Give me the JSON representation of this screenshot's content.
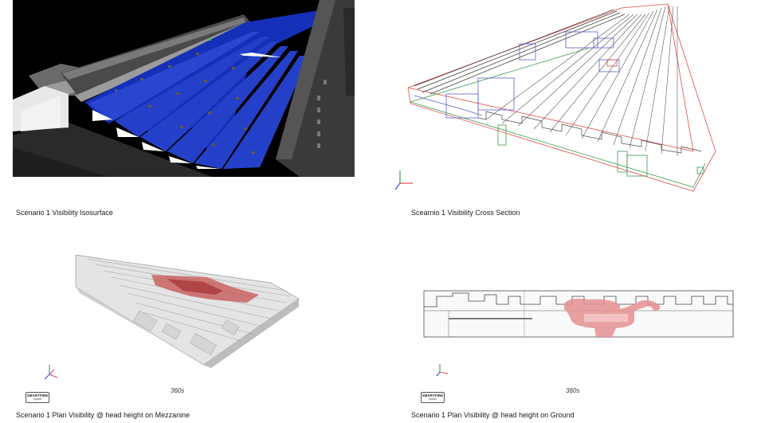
{
  "panels": [
    {
      "caption": "Scenario 1 Visibility Isosurface"
    },
    {
      "caption": "Scearnio 1 Visibility Cross Section"
    },
    {
      "caption": "Scenario 1 Plan Visibility @ head height on Mezzanine",
      "time": "360s",
      "logo_line1": "SMARTFIRE",
      "logo_line2": "System"
    },
    {
      "caption": "Scenario 1 Plan Visibility @ head height on Ground",
      "time": "360s",
      "logo_line1": "SMARTFIRE",
      "logo_line2": "System"
    }
  ],
  "colors": {
    "isosurface_blue": "#1530b8",
    "roof_grey": "#3a3a3a",
    "visibility_red": "#e58f8f",
    "wire_red": "#e04a4a",
    "wire_green": "#3a9a4a",
    "wire_blue": "#5a62c8"
  },
  "axis_icons": [
    "axis-triad-icon"
  ]
}
